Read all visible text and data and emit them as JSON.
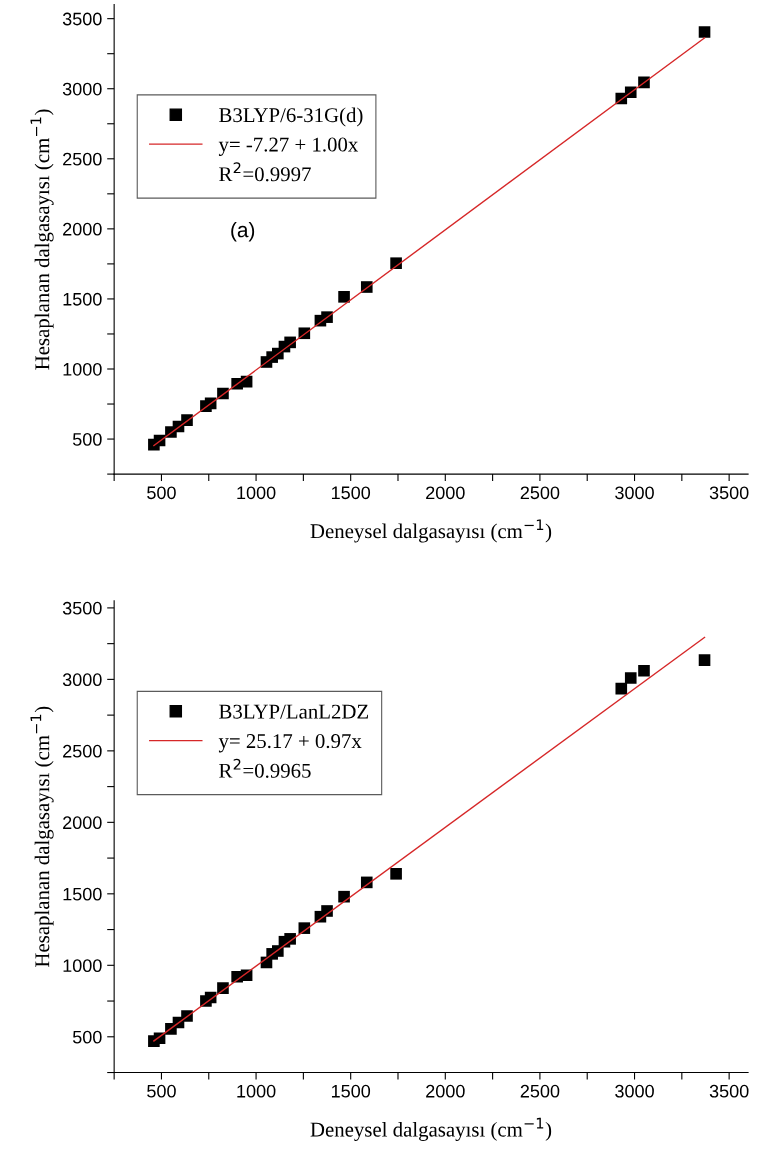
{
  "chart_data": [
    {
      "type": "scatter",
      "xlabel": "Deneysel dalgasayısı (cm$^{−1}$)",
      "ylabel": "Hesaplanan dalgasayısı (cm$^{−1}$)",
      "x": [
        460,
        490,
        550,
        590,
        635,
        735,
        760,
        825,
        900,
        950,
        1055,
        1085,
        1115,
        1150,
        1180,
        1255,
        1340,
        1375,
        1465,
        1585,
        1740,
        2930,
        2980,
        3050,
        3370
      ],
      "series": [
        {
          "name": "B3LYP/6-31G(d)",
          "color": "#000000",
          "marker": "square",
          "values": [
            460,
            490,
            550,
            590,
            635,
            735,
            755,
            825,
            895,
            910,
            1050,
            1085,
            1110,
            1160,
            1190,
            1255,
            1345,
            1370,
            1515,
            1585,
            1755,
            2930,
            2975,
            3045,
            3405
          ]
        },
        {
          "name": "y= -7.27 + 1.00x",
          "type": "line",
          "color": "#d62728",
          "marker": "none",
          "values": [
            453,
            null,
            null,
            null,
            null,
            null,
            null,
            null,
            null,
            null,
            null,
            null,
            null,
            null,
            null,
            null,
            null,
            null,
            null,
            null,
            null,
            null,
            null,
            null,
            3363
          ]
        }
      ],
      "annotations": [
        "R$^{2}$=0.9997",
        "(a)"
      ],
      "xlim": [
        250,
        3600
      ],
      "ylim": [
        250,
        3600
      ],
      "xticks": [
        {
          "value": 250,
          "label": null
        },
        500,
        {
          "value": 750,
          "label": null
        },
        1000,
        {
          "value": 1250,
          "label": null
        },
        1500,
        {
          "value": 1750,
          "label": null
        },
        2000,
        {
          "value": 2250,
          "label": null
        },
        2500,
        {
          "value": 2750,
          "label": null
        },
        3000,
        {
          "value": 3250,
          "label": null
        },
        3500
      ],
      "yticks": [
        {
          "value": 250,
          "label": null
        },
        500,
        {
          "value": 750,
          "label": null
        },
        1000,
        {
          "value": 1250,
          "label": null
        },
        1500,
        {
          "value": 1750,
          "label": null
        },
        2000,
        {
          "value": 2250,
          "label": null
        },
        2500,
        {
          "value": 2750,
          "label": null
        },
        3000,
        {
          "value": 3250,
          "label": null
        },
        3500
      ],
      "grid": false,
      "legend": "top left"
    },
    {
      "type": "scatter",
      "xlabel": "Deneysel dalgasayısı (cm$^{−1}$)",
      "ylabel": "Hesaplanan dalgasayısı (cm$^{−1}$)",
      "x": [
        460,
        490,
        550,
        590,
        635,
        735,
        760,
        825,
        900,
        950,
        1055,
        1085,
        1115,
        1150,
        1180,
        1255,
        1340,
        1375,
        1465,
        1585,
        1740,
        2930,
        2980,
        3050,
        3370
      ],
      "series": [
        {
          "name": "B3LYP/LanL2DZ",
          "color": "#000000",
          "marker": "square",
          "values": [
            470,
            490,
            555,
            600,
            645,
            750,
            775,
            840,
            920,
            930,
            1020,
            1080,
            1100,
            1165,
            1185,
            1260,
            1340,
            1380,
            1480,
            1580,
            1640,
            2935,
            3010,
            3060,
            3135
          ]
        },
        {
          "name": "y= 25.17 + 0.97x",
          "type": "line",
          "color": "#d62728",
          "marker": "none",
          "values": [
            471,
            null,
            null,
            null,
            null,
            null,
            null,
            null,
            null,
            null,
            null,
            null,
            null,
            null,
            null,
            null,
            null,
            null,
            null,
            null,
            null,
            null,
            null,
            null,
            3294
          ]
        }
      ],
      "annotations": [
        "R$^{2}$=0.9965"
      ],
      "xlim": [
        250,
        3600
      ],
      "ylim": [
        250,
        3550
      ],
      "xticks": [
        {
          "value": 250,
          "label": null
        },
        500,
        {
          "value": 750,
          "label": null
        },
        1000,
        {
          "value": 1250,
          "label": null
        },
        1500,
        {
          "value": 1750,
          "label": null
        },
        2000,
        {
          "value": 2250,
          "label": null
        },
        2500,
        {
          "value": 2750,
          "label": null
        },
        3000,
        {
          "value": 3250,
          "label": null
        },
        3500
      ],
      "yticks": [
        {
          "value": 250,
          "label": null
        },
        500,
        {
          "value": 750,
          "label": null
        },
        1000,
        {
          "value": 1250,
          "label": null
        },
        1500,
        {
          "value": 1750,
          "label": null
        },
        2000,
        {
          "value": 2250,
          "label": null
        },
        2500,
        {
          "value": 2750,
          "label": null
        },
        3000,
        {
          "value": 3250,
          "label": null
        },
        3500
      ],
      "grid": false,
      "legend": "top left"
    }
  ]
}
